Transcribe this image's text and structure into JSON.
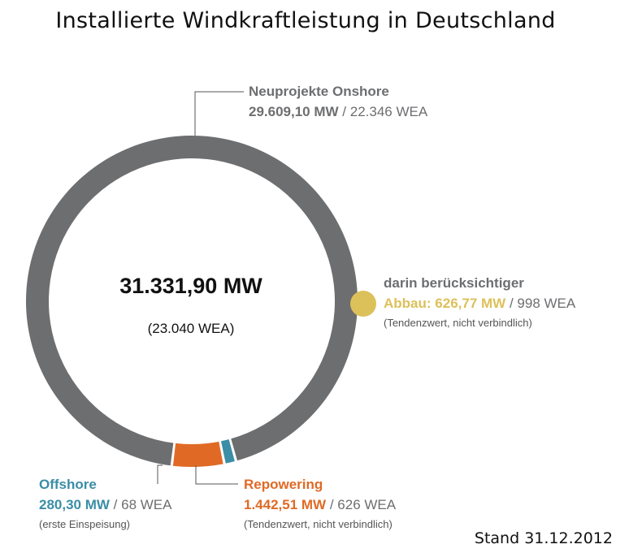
{
  "chart_data": {
    "type": "pie",
    "title": "Installierte Windkraftleistung in Deutschland",
    "total": {
      "value_text": "31.331,90 MW",
      "count_text": "(23.040 WEA)",
      "mw": 31331.9
    },
    "segments": [
      {
        "name": "Neuprojekte Onshore",
        "mw": 29609.1,
        "value_text": "29.609,10 MW",
        "count_text": "22.346 WEA",
        "color": "#6d6e70"
      },
      {
        "name": "Repowering",
        "mw": 1442.51,
        "value_text": "1.442,51 MW",
        "count_text": "626 WEA",
        "color": "#e06a25",
        "note": "(Tendenzwert, nicht verbindlich)"
      },
      {
        "name": "Offshore",
        "mw": 280.3,
        "value_text": "280,30 MW",
        "count_text": "68 WEA",
        "color": "#3a8ea6",
        "note": "(erste Einspeisung)"
      }
    ],
    "abbau": {
      "head": "darin berücksichtiger",
      "label": "Abbau:",
      "mw": 626.77,
      "value_text": "626,77 MW",
      "count_text": "998 WEA",
      "note": "(Tendenzwert, nicht verbindlich)",
      "color": "#dcc15a"
    }
  },
  "footer": {
    "stand": "Stand 31.12.2012"
  },
  "colors": {
    "text": "#111111",
    "grey_text": "#6d6e70",
    "leader": "#555555"
  }
}
